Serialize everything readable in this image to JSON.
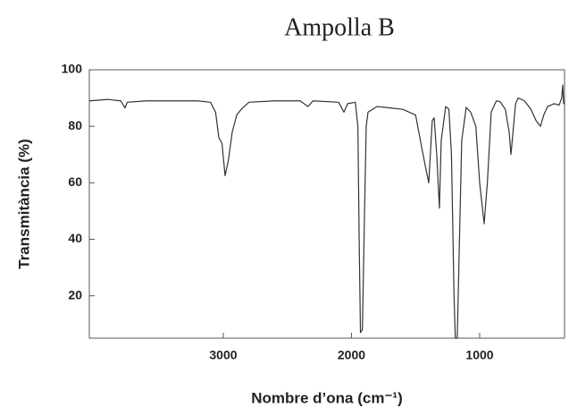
{
  "chart_data": {
    "type": "line",
    "title": "Ampolla B",
    "x_label": "Nombre d’ona (cm⁻¹)",
    "y_label": "Transmitància (%)",
    "x": [
      4045,
      3900,
      3800,
      3780,
      3766,
      3750,
      3600,
      3400,
      3200,
      3100,
      3060,
      3035,
      3010,
      2986,
      2960,
      2930,
      2895,
      2860,
      2800,
      2600,
      2400,
      2340,
      2300,
      2100,
      2059,
      2030,
      1970,
      1950,
      1940,
      1930,
      1915,
      1900,
      1885,
      1871,
      1800,
      1700,
      1600,
      1500,
      1450,
      1420,
      1397,
      1370,
      1355,
      1335,
      1314,
      1300,
      1265,
      1240,
      1220,
      1200,
      1190,
      1175,
      1165,
      1140,
      1105,
      1070,
      1030,
      1000,
      965,
      940,
      910,
      870,
      840,
      800,
      770,
      756,
      740,
      720,
      700,
      650,
      600,
      560,
      526,
      500,
      470,
      420,
      380,
      360,
      352,
      345,
      338
    ],
    "values": [
      89,
      89.5,
      89,
      87.5,
      86.5,
      88.5,
      89,
      89,
      89,
      88.5,
      85,
      76,
      74,
      62.5,
      68,
      78,
      84,
      86,
      88.5,
      89,
      89,
      87,
      89,
      88.5,
      85,
      88,
      88.5,
      80,
      40,
      7,
      8,
      45,
      80,
      85,
      87,
      86.5,
      86,
      84,
      72,
      65,
      60,
      82,
      83,
      70,
      51,
      75,
      87,
      86,
      70,
      20,
      5,
      5,
      25,
      75,
      86.7,
      85,
      80,
      60,
      45.5,
      60,
      85,
      89,
      88.7,
      86,
      78,
      70,
      78,
      88,
      90,
      89,
      86,
      82,
      80,
      84,
      87,
      88,
      87.5,
      90,
      94.6,
      88,
      88
    ],
    "color": "#333333",
    "xlim": [
      4045,
      338
    ],
    "xticks": [
      3000,
      2000,
      1000
    ],
    "ylim": [
      5,
      100
    ],
    "yticks": [
      20,
      40,
      60,
      80,
      100
    ],
    "grid": false
  }
}
